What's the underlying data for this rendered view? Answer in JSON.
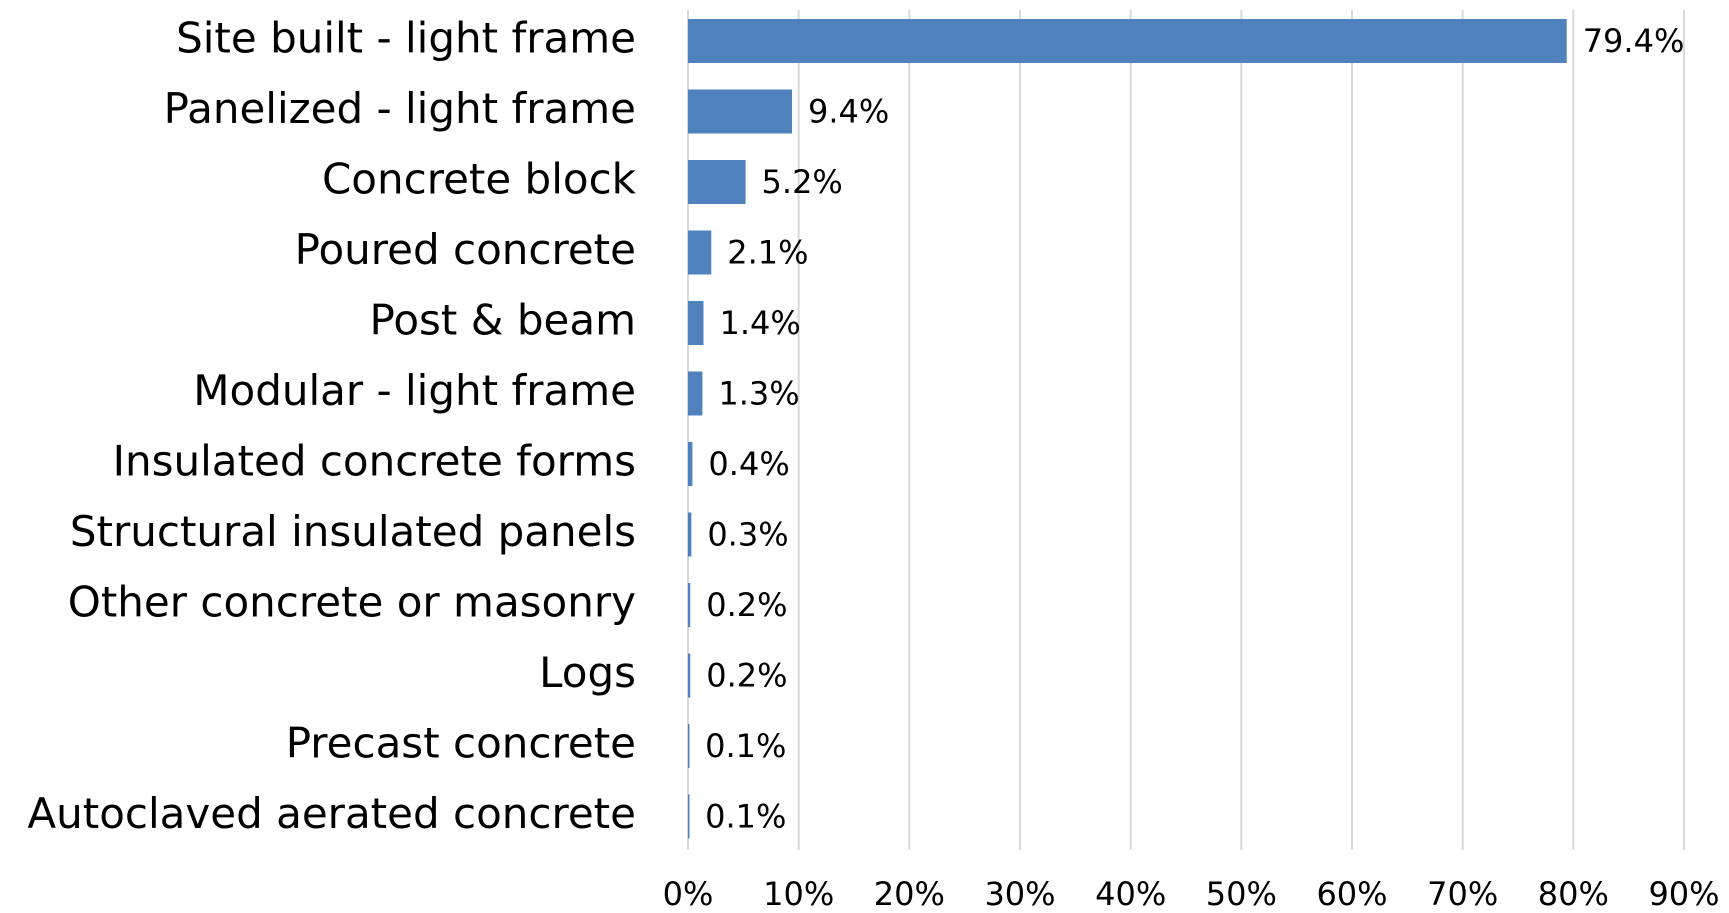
{
  "chart_data": {
    "type": "hbar",
    "categories": [
      "Site built - light frame",
      "Panelized  - light frame",
      "Concrete block",
      "Poured concrete",
      "Post & beam",
      "Modular  - light frame",
      "Insulated concrete forms",
      "Structural insulated panels",
      "Other concrete or masonry",
      "Logs",
      "Precast concrete",
      "Autoclaved aerated concrete"
    ],
    "values": [
      79.4,
      9.4,
      5.2,
      2.1,
      1.4,
      1.3,
      0.4,
      0.3,
      0.2,
      0.2,
      0.1,
      0.1
    ],
    "value_labels": [
      "79.4%",
      "9.4%",
      "5.2%",
      "2.1%",
      "1.4%",
      "1.3%",
      "0.4%",
      "0.3%",
      "0.2%",
      "0.2%",
      "0.1%",
      "0.1%"
    ],
    "color": "#4f81bd",
    "xlim": [
      0,
      90
    ],
    "xticks": [
      {
        "value": 0,
        "label": "0%"
      },
      {
        "value": 10,
        "label": "10%"
      },
      {
        "value": 20,
        "label": "20%"
      },
      {
        "value": 30,
        "label": "30%"
      },
      {
        "value": 40,
        "label": "40%"
      },
      {
        "value": 50,
        "label": "50%"
      },
      {
        "value": 60,
        "label": "60%"
      },
      {
        "value": 70,
        "label": "70%"
      },
      {
        "value": 80,
        "label": "80%"
      },
      {
        "value": 90,
        "label": "90%"
      }
    ],
    "grid": true
  }
}
